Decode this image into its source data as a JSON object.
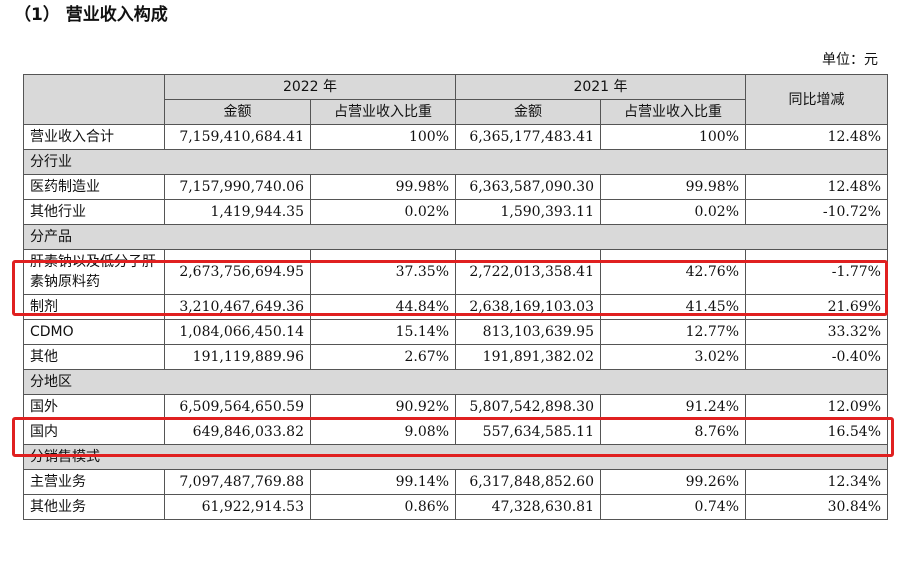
{
  "heading": "（1） 营业收入构成",
  "unit": "单位：元",
  "header": {
    "year_2022": "2022 年",
    "year_2021": "2021 年",
    "yoy": "同比增减",
    "amount": "金额",
    "ratio": "占营业收入比重"
  },
  "total": {
    "label": "营业收入合计",
    "a2022": "7,159,410,684.41",
    "r2022": "100%",
    "a2021": "6,365,177,483.41",
    "r2021": "100%",
    "yoy": "12.48%"
  },
  "sections": [
    {
      "title": "分行业",
      "rows": [
        {
          "label": "医药制造业",
          "a2022": "7,157,990,740.06",
          "r2022": "99.98%",
          "a2021": "6,363,587,090.30",
          "r2021": "99.98%",
          "yoy": "12.48%"
        },
        {
          "label": "其他行业",
          "a2022": "1,419,944.35",
          "r2022": "0.02%",
          "a2021": "1,590,393.11",
          "r2021": "0.02%",
          "yoy": "-10.72%"
        }
      ]
    },
    {
      "title": "分产品",
      "rows": [
        {
          "label": "肝素钠以及低分子肝素钠原料药",
          "a2022": "2,673,756,694.95",
          "r2022": "37.35%",
          "a2021": "2,722,013,358.41",
          "r2021": "42.76%",
          "yoy": "-1.77%"
        },
        {
          "label": "制剂",
          "a2022": "3,210,467,649.36",
          "r2022": "44.84%",
          "a2021": "2,638,169,103.03",
          "r2021": "41.45%",
          "yoy": "21.69%"
        },
        {
          "label": "CDMO",
          "a2022": "1,084,066,450.14",
          "r2022": "15.14%",
          "a2021": "813,103,639.95",
          "r2021": "12.77%",
          "yoy": "33.32%"
        },
        {
          "label": "其他",
          "a2022": "191,119,889.96",
          "r2022": "2.67%",
          "a2021": "191,891,382.02",
          "r2021": "3.02%",
          "yoy": "-0.40%"
        }
      ]
    },
    {
      "title": "分地区",
      "rows": [
        {
          "label": "国外",
          "a2022": "6,509,564,650.59",
          "r2022": "90.92%",
          "a2021": "5,807,542,898.30",
          "r2021": "91.24%",
          "yoy": "12.09%"
        },
        {
          "label": "国内",
          "a2022": "649,846,033.82",
          "r2022": "9.08%",
          "a2021": "557,634,585.11",
          "r2021": "8.76%",
          "yoy": "16.54%"
        }
      ]
    },
    {
      "title": "分销售模式",
      "rows": [
        {
          "label": "主营业务",
          "a2022": "7,097,487,769.88",
          "r2022": "99.14%",
          "a2021": "6,317,848,852.60",
          "r2021": "99.26%",
          "yoy": "12.34%"
        },
        {
          "label": "其他业务",
          "a2022": "61,922,914.53",
          "r2022": "0.86%",
          "a2021": "47,328,630.81",
          "r2021": "0.74%",
          "yoy": "30.84%"
        }
      ]
    }
  ],
  "highlight_color": "#e02020"
}
